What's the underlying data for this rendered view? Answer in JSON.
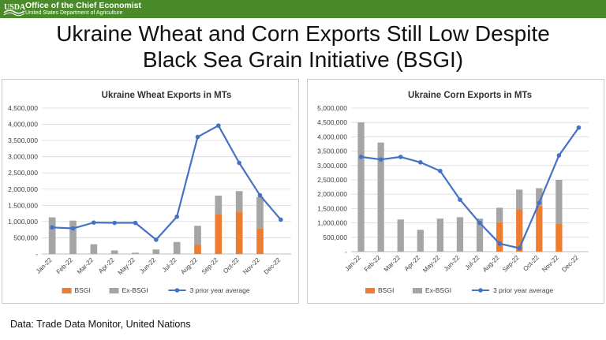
{
  "header": {
    "logo_text": "USDA",
    "org_name": "Office of the Chief Economist",
    "dept_name": "United States Department of Agriculture",
    "bar_color": "#4a8a2a"
  },
  "slide": {
    "title_line1": "Ukraine Wheat and Corn Exports Still Low Despite",
    "title_line2": "Black Sea Grain Initiative (BSGI)",
    "source": "Data: Trade Data Monitor, United Nations"
  },
  "colors": {
    "bsgi": "#ed7d31",
    "ex_bsgi": "#a5a5a5",
    "avg": "#4472c4"
  },
  "chart_data": [
    {
      "type": "bar",
      "stacked": true,
      "title": "Ukraine Wheat Exports in MTs",
      "categories": [
        "Jan-22",
        "Feb-22",
        "Mar-22",
        "Apr-22",
        "May-22",
        "Jun-22",
        "Jul-22",
        "Aug-22",
        "Sep-22",
        "Oct-22",
        "Nov-22",
        "Dec-22"
      ],
      "series": [
        {
          "name": "BSGI",
          "kind": "bar",
          "values": [
            0,
            0,
            0,
            0,
            0,
            0,
            0,
            280000,
            1230000,
            1310000,
            780000,
            0
          ]
        },
        {
          "name": "Ex-BSGI",
          "kind": "bar",
          "values": [
            1130000,
            1030000,
            300000,
            110000,
            40000,
            140000,
            370000,
            590000,
            570000,
            630000,
            980000,
            0
          ]
        },
        {
          "name": "3 prior year average",
          "kind": "line",
          "values": [
            820000,
            790000,
            970000,
            960000,
            960000,
            440000,
            1150000,
            3610000,
            3960000,
            2810000,
            1810000,
            1060000
          ]
        }
      ],
      "ylim": [
        0,
        4500000
      ],
      "yticks": [
        0,
        500000,
        1000000,
        1500000,
        2000000,
        2500000,
        3000000,
        3500000,
        4000000,
        4500000
      ],
      "ytick_labels": [
        "-",
        "500,000",
        "1,000,000",
        "1,500,000",
        "2,000,000",
        "2,500,000",
        "3,000,000",
        "3,500,000",
        "4,000,000",
        "4,500,000"
      ],
      "xlabel": "",
      "ylabel": "",
      "legend": "bottom"
    },
    {
      "type": "bar",
      "stacked": true,
      "title": "Ukraine Corn Exports in MTs",
      "categories": [
        "Jan-22",
        "Feb-22",
        "Mar-22",
        "Apr-22",
        "May-22",
        "Jun-22",
        "Jul-22",
        "Aug-22",
        "Sep-22",
        "Oct-22",
        "Nov-22",
        "Dec-22"
      ],
      "series": [
        {
          "name": "BSGI",
          "kind": "bar",
          "values": [
            0,
            0,
            0,
            0,
            0,
            0,
            0,
            1020000,
            1480000,
            1600000,
            980000,
            0
          ]
        },
        {
          "name": "Ex-BSGI",
          "kind": "bar",
          "values": [
            4500000,
            3800000,
            1120000,
            760000,
            1150000,
            1200000,
            1150000,
            510000,
            680000,
            610000,
            1520000,
            0
          ]
        },
        {
          "name": "3 prior year average",
          "kind": "line",
          "values": [
            3300000,
            3210000,
            3300000,
            3110000,
            2810000,
            1810000,
            1000000,
            280000,
            120000,
            1700000,
            3350000,
            4320000
          ]
        }
      ],
      "ylim": [
        0,
        5000000
      ],
      "yticks": [
        0,
        500000,
        1000000,
        1500000,
        2000000,
        2500000,
        3000000,
        3500000,
        4000000,
        4500000,
        5000000
      ],
      "ytick_labels": [
        "-",
        "500,000",
        "1,000,000",
        "1,500,000",
        "2,000,000",
        "2,500,000",
        "3,000,000",
        "3,500,000",
        "4,000,000",
        "4,500,000",
        "5,000,000"
      ],
      "xlabel": "",
      "ylabel": "",
      "legend": "bottom"
    }
  ]
}
